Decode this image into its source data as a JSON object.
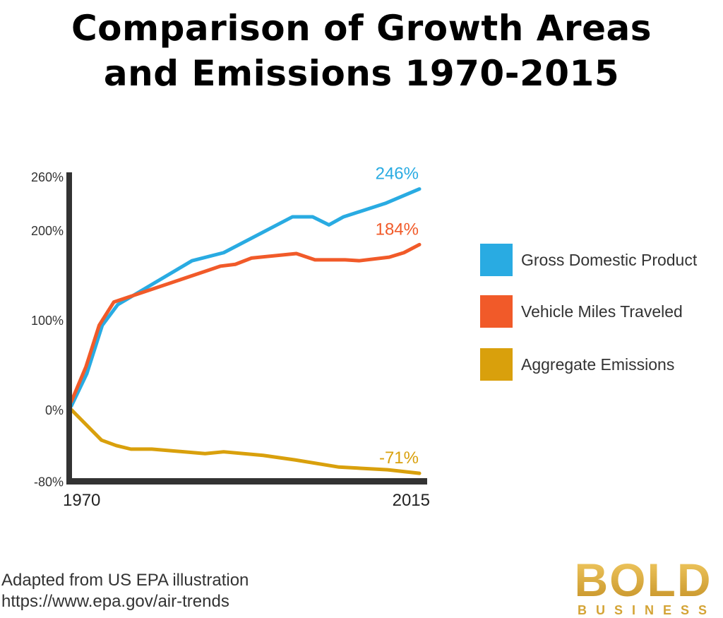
{
  "title_line1": "Comparison of Growth Areas",
  "title_line2": "and Emissions 1970-2015",
  "chart_data": {
    "type": "line",
    "title": "Comparison of Growth Areas and Emissions 1970-2015",
    "xlim": [
      1970,
      2015
    ],
    "ylim": [
      -80,
      260
    ],
    "x_tick_labels": [
      "1970",
      "2015"
    ],
    "y_ticks": [
      260,
      200,
      100,
      0,
      -80
    ],
    "y_tick_labels": [
      "260%",
      "200%",
      "100%",
      "0%",
      "-80%"
    ],
    "grid": false,
    "legend_position": "right",
    "series": [
      {
        "name": "Gross Domestic Product",
        "color": "#29abe2",
        "end_label": "246%",
        "points": [
          [
            1970,
            4
          ],
          [
            1972,
            40
          ],
          [
            1974,
            94
          ],
          [
            1976,
            117
          ],
          [
            1985.6,
            166
          ],
          [
            1989.7,
            175
          ],
          [
            1998.6,
            215
          ],
          [
            2001.2,
            215
          ],
          [
            2003.3,
            206
          ],
          [
            2005.2,
            215
          ],
          [
            2010.6,
            230
          ],
          [
            2015,
            246
          ]
        ]
      },
      {
        "name": "Vehicle Miles Traveled",
        "color": "#f15a29",
        "end_label": "184%",
        "points": [
          [
            1970,
            9
          ],
          [
            1971.9,
            48
          ],
          [
            1973.6,
            94
          ],
          [
            1975.5,
            120
          ],
          [
            1989.3,
            160
          ],
          [
            1991.2,
            162
          ],
          [
            1993.3,
            169
          ],
          [
            1999.1,
            174
          ],
          [
            2001.5,
            167
          ],
          [
            2005.4,
            167
          ],
          [
            2007.2,
            166
          ],
          [
            2011.1,
            170
          ],
          [
            2013,
            175
          ],
          [
            2015,
            184
          ]
        ]
      },
      {
        "name": "Aggregate Emissions",
        "color": "#d9a00c",
        "end_label": "-71%",
        "points": [
          [
            1970,
            0
          ],
          [
            1973.9,
            -34
          ],
          [
            1975.8,
            -40
          ],
          [
            1977.7,
            -44
          ],
          [
            1980.4,
            -44
          ],
          [
            1987.3,
            -49
          ],
          [
            1989.7,
            -47
          ],
          [
            1994.8,
            -51
          ],
          [
            1998.9,
            -56
          ],
          [
            2004.6,
            -64
          ],
          [
            2010.9,
            -67
          ],
          [
            2015,
            -71
          ]
        ]
      }
    ]
  },
  "source_line1": "Adapted from US EPA illustration",
  "source_line2": "https://www.epa.gov/air-trends",
  "logo": {
    "main": "BOLD",
    "sub": "BUSINESS",
    "color": "#d4a436"
  }
}
